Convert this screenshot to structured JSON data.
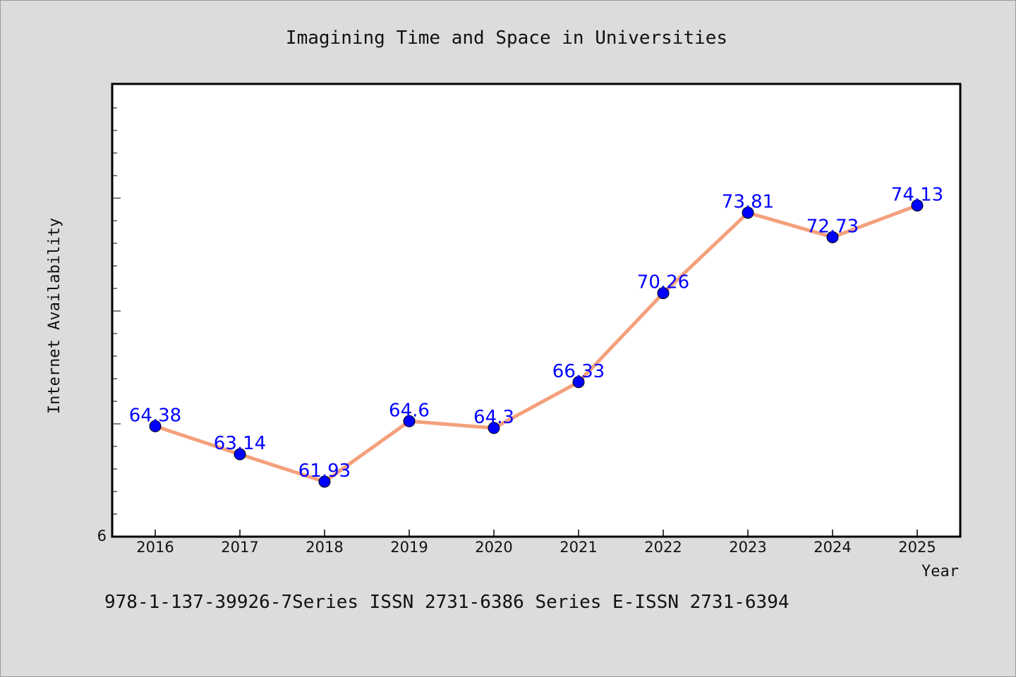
{
  "chart_data": {
    "type": "line",
    "title": "Imagining Time and Space in Universities",
    "xlabel": "Year",
    "ylabel": "Internet Availability",
    "categories": [
      "2016",
      "2017",
      "2018",
      "2019",
      "2020",
      "2021",
      "2022",
      "2023",
      "2024",
      "2025"
    ],
    "series": [
      {
        "values": [
          64.38,
          63.14,
          61.93,
          64.6,
          64.3,
          66.33,
          70.26,
          73.81,
          72.73,
          74.13
        ]
      }
    ],
    "data_labels": [
      "64.38",
      "63.14",
      "61.93",
      "64.6",
      "64.3",
      "66.33",
      "70.26",
      "73.81",
      "72.73",
      "74.13"
    ],
    "y_tick_labels": [
      "6"
    ],
    "ylim": [
      59.5,
      79.5
    ],
    "grid": false,
    "legend": "none",
    "line_color": "#f4a07c",
    "marker_color": "#0000ff",
    "label_color": "#0000ff",
    "footer": "978-1-137-39926-7Series ISSN 2731-6386 Series E-ISSN 2731-6394"
  }
}
